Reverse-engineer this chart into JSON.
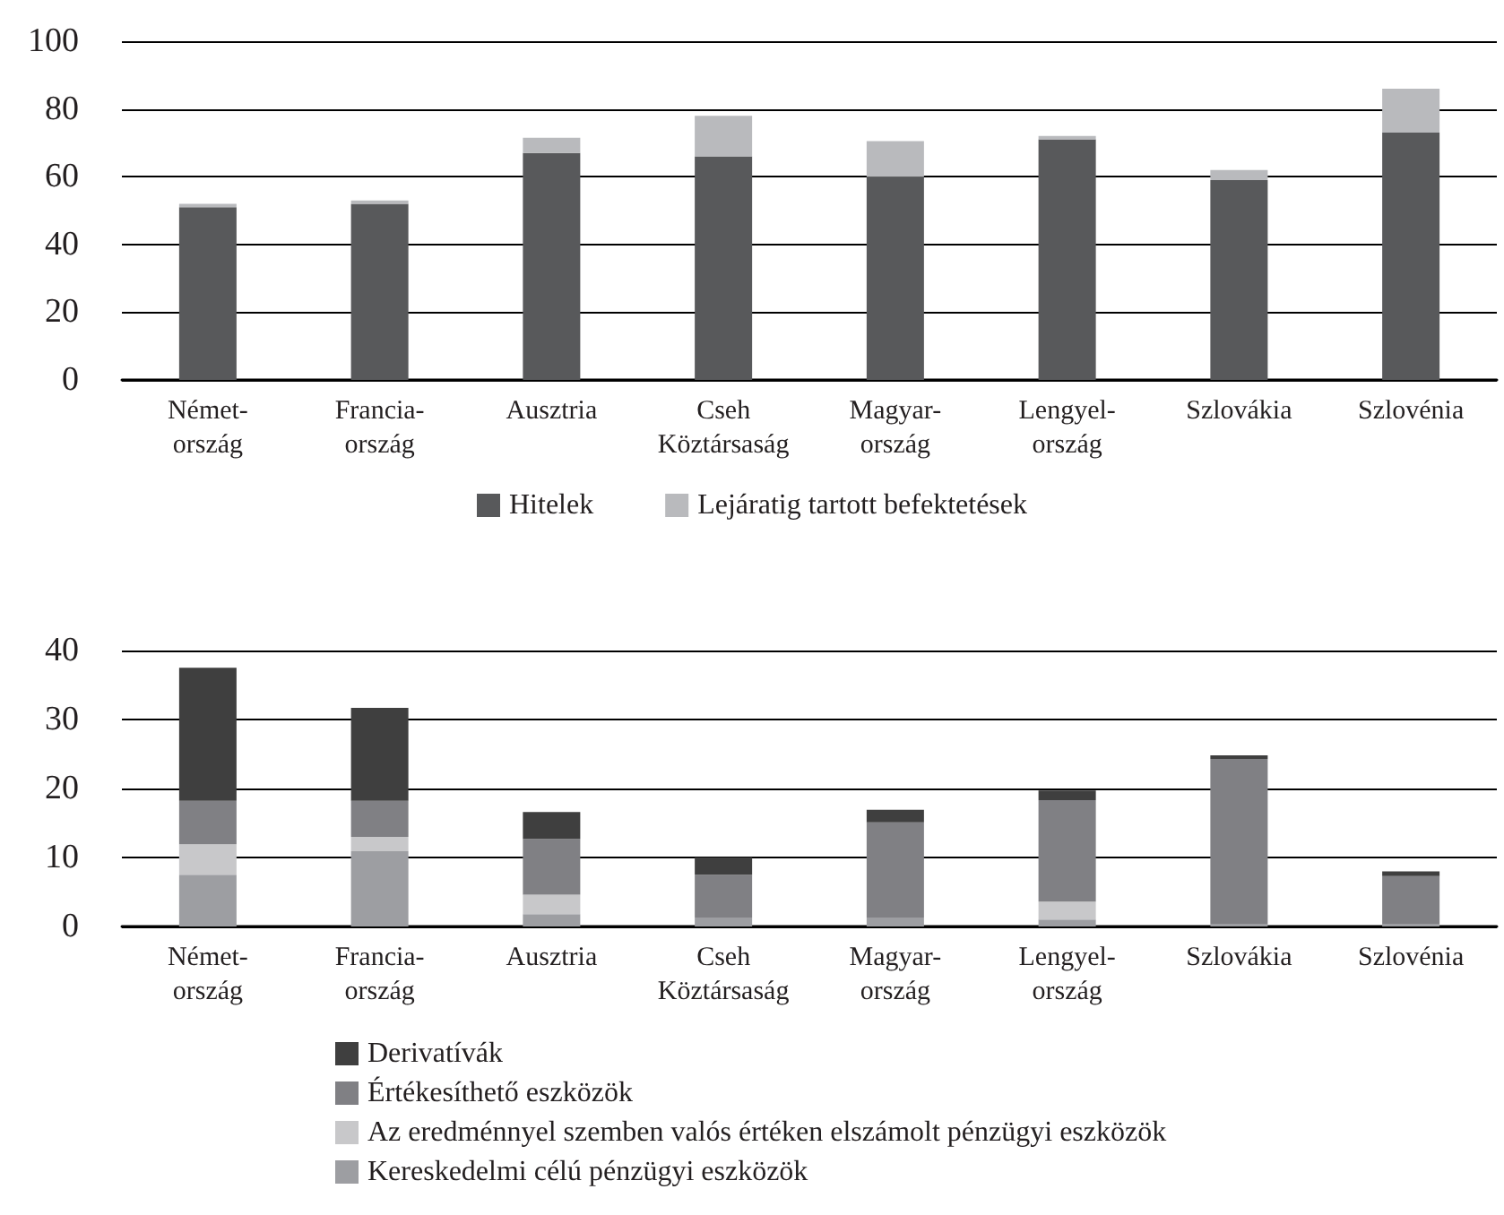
{
  "chart_data": [
    {
      "type": "bar",
      "categories": [
        "Német-\nország",
        "Francia-\nország",
        "Ausztria",
        "Cseh\nKöztársaság",
        "Magyar-\nország",
        "Lengyel-\nország",
        "Szlovákia",
        "Szlovénia"
      ],
      "series": [
        {
          "name": "Hitelek",
          "color": "#58595b",
          "values": [
            51,
            52,
            67,
            66,
            60,
            71,
            59,
            73
          ]
        },
        {
          "name": "Lejáratig tartott befektetések",
          "color": "#b9babd",
          "values": [
            1,
            1,
            4.5,
            12,
            10.5,
            1,
            3,
            13
          ]
        }
      ],
      "stacked": true,
      "ylim": [
        0,
        100
      ],
      "yticks": [
        0,
        20,
        40,
        60,
        80,
        100
      ],
      "grid": "y",
      "legend": "bottom"
    },
    {
      "type": "bar",
      "categories": [
        "Német-\nország",
        "Francia-\nország",
        "Ausztria",
        "Cseh\nKöztársaság",
        "Magyar-\nország",
        "Lengyel-\nország",
        "Szlovákia",
        "Szlovénia"
      ],
      "series": [
        {
          "name": "Kereskedelmi célú pénzügyi eszközök",
          "color": "#9d9ea2",
          "values": [
            7.5,
            10.9,
            1.8,
            1.3,
            1.3,
            1,
            0.4,
            0.4
          ]
        },
        {
          "name": "Az eredménnyel szemben valós értéken elszámolt pénzügyi eszközök",
          "color": "#c8c8ca",
          "values": [
            4.4,
            2.1,
            2.8,
            0,
            0,
            2.6,
            0,
            0
          ]
        },
        {
          "name": "Értékesíthető eszközök",
          "color": "#808084",
          "values": [
            6.3,
            5.2,
            8.1,
            6.2,
            13.8,
            14.7,
            23.9,
            6.9
          ]
        },
        {
          "name": "Derivatívák",
          "color": "#3f3f3f",
          "values": [
            19.3,
            13.5,
            3.9,
            2.5,
            1.8,
            1.4,
            0.5,
            0.7
          ]
        }
      ],
      "stacked": true,
      "ylim": [
        0,
        40
      ],
      "yticks": [
        0,
        10,
        20,
        30,
        40
      ],
      "grid": "y",
      "legend": "bottom left"
    }
  ]
}
